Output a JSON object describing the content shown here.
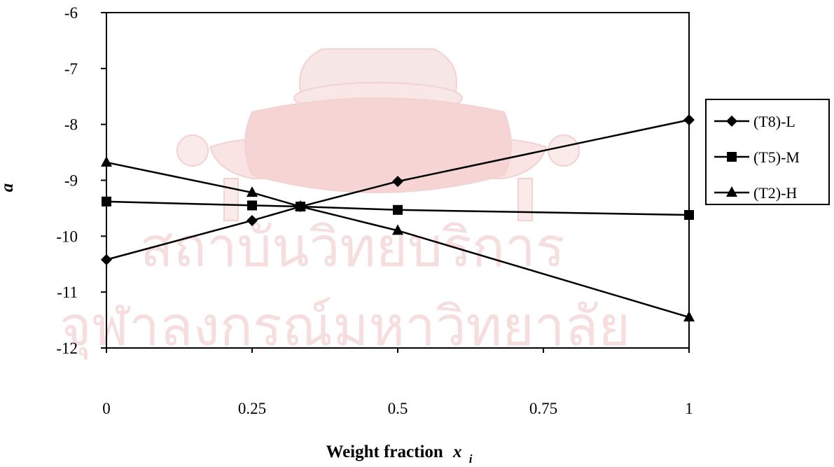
{
  "chart_data": {
    "type": "line",
    "title": "",
    "xlabel": "Weight fraction",
    "xlabel_symbol": "x",
    "xlabel_subscript": "i",
    "ylabel": "a",
    "xlim": [
      0,
      1
    ],
    "ylim": [
      -12,
      -6
    ],
    "x_ticks": [
      "0",
      "0.25",
      "0.5",
      "0.75",
      "1"
    ],
    "y_ticks": [
      "-6",
      "-7",
      "-8",
      "-9",
      "-10",
      "-11",
      "-12"
    ],
    "grid": false,
    "legend_position": "right",
    "series": [
      {
        "name": "(T8)-L",
        "marker": "diamond",
        "color": "#000000",
        "points": [
          [
            0,
            -10.42
          ],
          [
            0.25,
            -9.72
          ],
          [
            0.333,
            -9.47
          ],
          [
            0.5,
            -9.02
          ],
          [
            1,
            -7.92
          ]
        ]
      },
      {
        "name": "(T5)-M",
        "marker": "square",
        "color": "#000000",
        "points": [
          [
            0,
            -9.38
          ],
          [
            0.25,
            -9.45
          ],
          [
            0.333,
            -9.47
          ],
          [
            0.5,
            -9.53
          ],
          [
            1,
            -9.62
          ]
        ]
      },
      {
        "name": "(T2)-H",
        "marker": "triangle",
        "color": "#000000",
        "points": [
          [
            0,
            -8.68
          ],
          [
            0.25,
            -9.22
          ],
          [
            0.333,
            -9.47
          ],
          [
            0.5,
            -9.9
          ],
          [
            1,
            -11.45
          ]
        ]
      }
    ]
  },
  "watermark": {
    "line1": "สถาบันวิทยบริการ",
    "line2": "จุฬาลงกรณ์มหาวิทยาลัย",
    "emblem": "university-emblem",
    "color": "#f6dede"
  }
}
